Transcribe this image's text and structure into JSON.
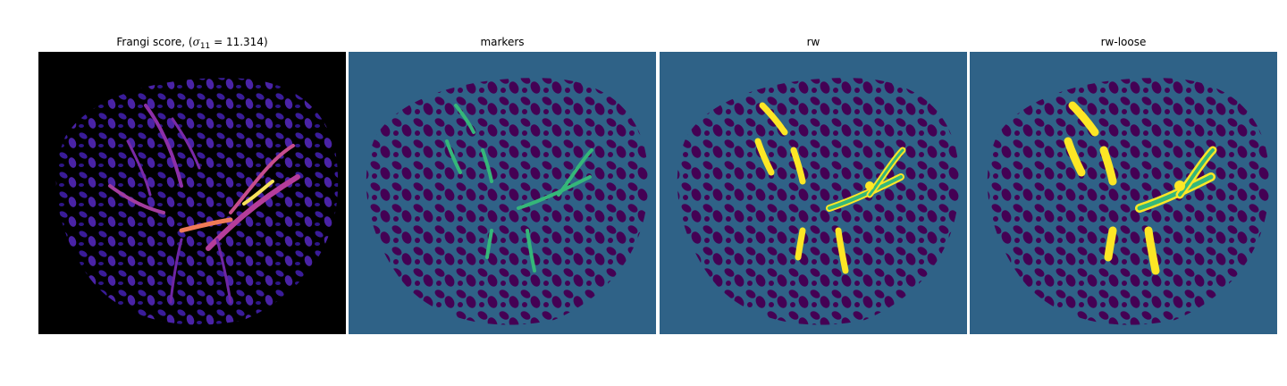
{
  "panels": [
    {
      "title_prefix": "Frangi score, (",
      "sigma_symbol": "σ",
      "sigma_sub": "11",
      "title_suffix": " = 11.314)"
    },
    {
      "title": "markers"
    },
    {
      "title": "rw"
    },
    {
      "title": "rw-loose"
    }
  ],
  "colors": {
    "background_dark": "#000000",
    "background_seg": "#2f6287",
    "blob": "#440154",
    "frangi_low": "#3a1c9a",
    "frangi_mid": "#b53d9a",
    "frangi_high": "#f7e35a",
    "marker_green": "#35b779",
    "rw_yellow": "#fde725"
  }
}
